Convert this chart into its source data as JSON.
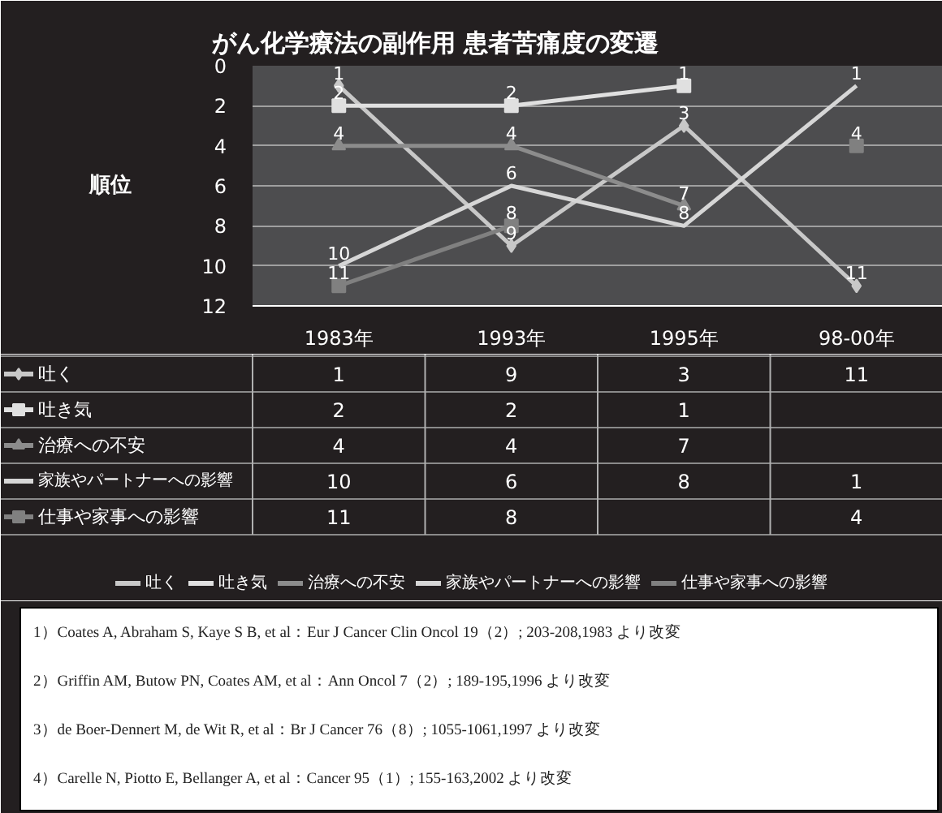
{
  "chart_data": {
    "type": "line",
    "title": "がん化学療法の副作用  患者苦痛度の変遷",
    "ylabel": "順位",
    "categories": [
      "1983年",
      "1993年",
      "1995年",
      "98-00年"
    ],
    "ylim": [
      12,
      0
    ],
    "yticks": [
      0,
      2,
      4,
      6,
      8,
      10,
      12
    ],
    "grid": "y",
    "legend": "bottom",
    "data_labels": true,
    "series": [
      {
        "name": "吐く",
        "color": "#c8c8c8",
        "marker": "diamond",
        "values": [
          1,
          9,
          3,
          11
        ]
      },
      {
        "name": "吐き気",
        "color": "#e0e0e0",
        "marker": "square",
        "values": [
          2,
          2,
          1,
          null
        ]
      },
      {
        "name": "治療への不安",
        "color": "#8c8c8c",
        "marker": "triangle",
        "values": [
          4,
          4,
          7,
          null
        ]
      },
      {
        "name": "家族やパートナーへの影響",
        "color": "#d6d6d6",
        "marker": "none",
        "values": [
          10,
          6,
          8,
          1
        ]
      },
      {
        "name": "仕事や家事への影響",
        "color": "#808080",
        "marker": "square",
        "values": [
          11,
          8,
          null,
          4
        ]
      }
    ],
    "annotations": [
      {
        "text": "1",
        "x": "1983年",
        "y": 1
      },
      {
        "text": "9",
        "x": "1993年",
        "y": 9
      },
      {
        "text": "3",
        "x": "1995年",
        "y": 3
      },
      {
        "text": "11",
        "x": "98-00年",
        "y": 11
      },
      {
        "text": "2",
        "x": "1983年",
        "y": 2
      },
      {
        "text": "2",
        "x": "1993年",
        "y": 2
      },
      {
        "text": "1",
        "x": "1995年",
        "y": 1
      },
      {
        "text": "4",
        "x": "1983年",
        "y": 4
      },
      {
        "text": "4",
        "x": "1993年",
        "y": 4
      },
      {
        "text": "7",
        "x": "1995年",
        "y": 7
      },
      {
        "text": "10",
        "x": "1983年",
        "y": 10
      },
      {
        "text": "6",
        "x": "1993年",
        "y": 6
      },
      {
        "text": "8",
        "x": "1995年",
        "y": 8
      },
      {
        "text": "1",
        "x": "98-00年",
        "y": 1
      },
      {
        "text": "11",
        "x": "1983年",
        "y": 11
      },
      {
        "text": "8",
        "x": "1993年",
        "y": 8
      },
      {
        "text": "4",
        "x": "98-00年",
        "y": 4
      },
      "1）Coates A, Abraham S, Kaye S B, et al：Eur J Cancer Clin Oncol 19（2）; 203-208,1983 より改変",
      "2）Griffin AM, Butow PN, Coates AM, et al：Ann Oncol 7（2）; 189-195,1996 より改変",
      "3）de Boer-Dennert M, de Wit R, et al：Br J Cancer 76（8）; 1055-1061,1997 より改変",
      "4）Carelle N, Piotto E, Bellanger A, et al：Cancer 95（1）; 155-163,2002 より改変"
    ]
  }
}
